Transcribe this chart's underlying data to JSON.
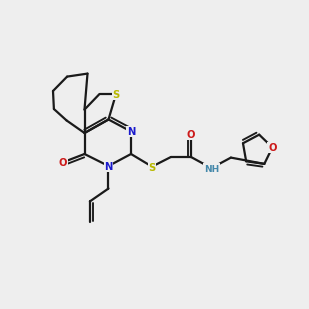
{
  "bg_color": "#eeeeee",
  "bond_color": "#1a1a1a",
  "S_color": "#b8b800",
  "N_color": "#1a1acc",
  "O_color": "#cc1a1a",
  "NH_color": "#4488aa",
  "lw": 1.6
}
